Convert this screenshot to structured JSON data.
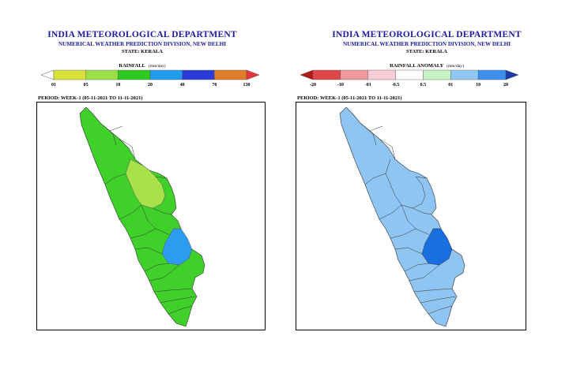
{
  "panels": [
    {
      "id": "rainfall",
      "org": "INDIA METEOROLOGICAL DEPARTMENT",
      "division": "NUMERICAL WEATHER PREDICTION DIVISION, NEW DELHI",
      "state": "STATE: KERALA",
      "legend_title": "RAINFALL",
      "legend_unit": "(mm/day)",
      "legend_ticks": [
        "01",
        "05",
        "10",
        "20",
        "40",
        "70",
        "130"
      ],
      "legend_colors": [
        "#ffffff",
        "#d6e23a",
        "#99e044",
        "#2fca1f",
        "#1f9bf0",
        "#2b3bd8",
        "#e07b28",
        "#e8323c"
      ],
      "period": "PERIOD: WEEK-1 (05-11-2021 TO 11-11-2021)",
      "map_colors": {
        "base": "#3fd12a",
        "light": "#a8e24a",
        "blue": "#2c9cf0"
      }
    },
    {
      "id": "anomaly",
      "org": "INDIA METEOROLOGICAL DEPARTMENT",
      "division": "NUMERICAL WEATHER PREDICTION DIVISION, NEW DELHI",
      "state": "STATE: KERALA",
      "legend_title": "RAINFALL ANOMALY",
      "legend_unit": "(mm/day)",
      "legend_ticks": [
        "-20",
        "-10",
        "-01",
        "-0.5",
        "0.5",
        "01",
        "10",
        "20"
      ],
      "legend_colors": [
        "#b21818",
        "#e0474a",
        "#f09aa0",
        "#f8cfd6",
        "#ffffff",
        "#c7f2c4",
        "#8fc8f4",
        "#3a8ff0",
        "#1b3aa6"
      ],
      "period": "PERIOD: WEEK-1 (05-11-2021 TO 11-11-2021)",
      "map_colors": {
        "base": "#8ec5f2",
        "dark": "#1a6fe0"
      }
    }
  ]
}
